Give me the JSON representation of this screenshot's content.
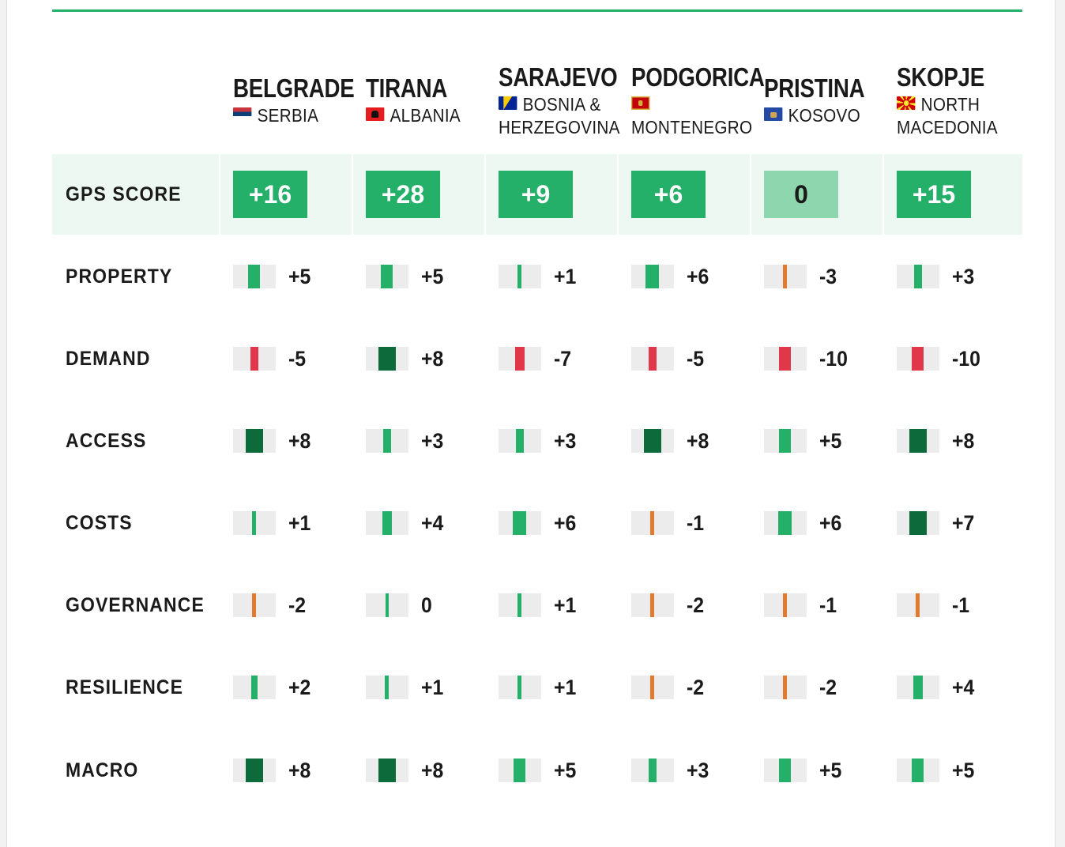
{
  "colors": {
    "accent": "#25b06a",
    "gps_positive": "#25b06a",
    "gps_zero": "#8ed7ae",
    "gps_band": "#eef8f2",
    "bar_strong_green": "#0d6b3b",
    "bar_green": "#25b06a",
    "bar_negative": "#e0384a",
    "bar_slightly_negative": "#e07a2e",
    "bar_track": "#ececec"
  },
  "chart_data": {
    "type": "table",
    "columns": [
      {
        "city": "BELGRADE",
        "country": "SERBIA",
        "flag": "serbia-flag-icon"
      },
      {
        "city": "TIRANA",
        "country": "ALBANIA",
        "flag": "albania-flag-icon"
      },
      {
        "city": "SARAJEVO",
        "country": "BOSNIA & HERZEGOVINA",
        "flag": "bosnia-flag-icon"
      },
      {
        "city": "PODGORICA",
        "country": "MONTENEGRO",
        "flag": "montenegro-flag-icon"
      },
      {
        "city": "PRISTINA",
        "country": "KOSOVO",
        "flag": "kosovo-flag-icon"
      },
      {
        "city": "SKOPJE",
        "country": "NORTH MACEDONIA",
        "flag": "north-macedonia-flag-icon"
      }
    ],
    "gps_score": {
      "label": "GPS SCORE",
      "values": [
        "+16",
        "+28",
        "+9",
        "+6",
        "0",
        "+15"
      ]
    },
    "metrics": [
      {
        "label": "PROPERTY",
        "values": [
          "+5",
          "+5",
          "+1",
          "+6",
          "-3",
          "+3"
        ]
      },
      {
        "label": "DEMAND",
        "values": [
          "-5",
          "+8",
          "-7",
          "-5",
          "-10",
          "-10"
        ]
      },
      {
        "label": "ACCESS",
        "values": [
          "+8",
          "+3",
          "+3",
          "+8",
          "+5",
          "+8"
        ]
      },
      {
        "label": "COSTS",
        "values": [
          "+1",
          "+4",
          "+6",
          "-1",
          "+6",
          "+7"
        ]
      },
      {
        "label": "GOVERNANCE",
        "values": [
          "-2",
          "0",
          "+1",
          "-2",
          "-1",
          "-1"
        ]
      },
      {
        "label": "RESILIENCE",
        "values": [
          "+2",
          "+1",
          "+1",
          "-2",
          "-2",
          "+4"
        ]
      },
      {
        "label": "MACRO",
        "values": [
          "+8",
          "+8",
          "+5",
          "+3",
          "+5",
          "+5"
        ]
      }
    ]
  }
}
